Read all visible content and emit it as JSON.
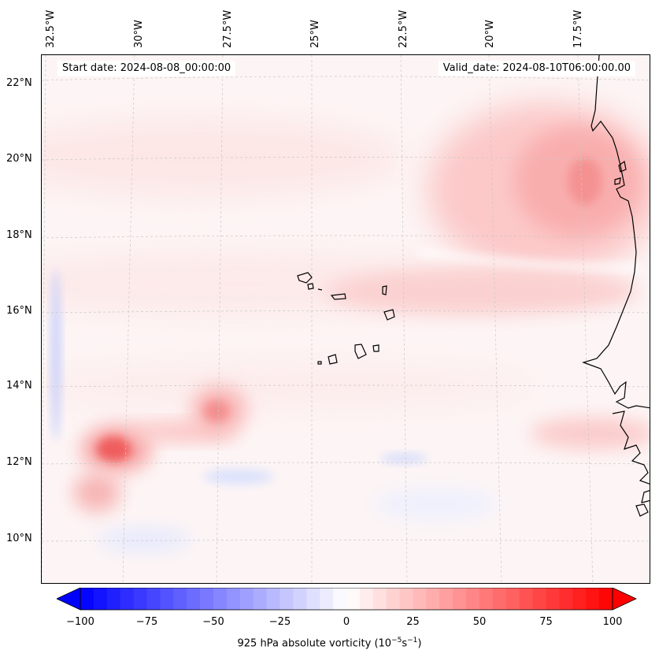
{
  "map": {
    "start_date": "Start date: 2024-08-08_00:00:00",
    "valid_date": "Valid_date: 2024-08-10T06:00:00.00",
    "longitude_labels": [
      "32.5°W",
      "30°W",
      "27.5°W",
      "25°W",
      "22.5°W",
      "20°W",
      "17.5°W"
    ],
    "latitude_labels": [
      "22°N",
      "20°N",
      "18°N",
      "16°N",
      "14°N",
      "12°N",
      "10°N"
    ],
    "gridlines": "dashed"
  },
  "colorbar": {
    "label_text": "925 hPa absolute vorticity (10",
    "label_exp1": "−5",
    "label_mid": "s",
    "label_exp2": "−1",
    "label_end": ")",
    "min": -100,
    "max": 100,
    "ticks": [
      "−100",
      "−75",
      "−50",
      "−25",
      "0",
      "25",
      "50",
      "75",
      "100"
    ],
    "extend": "both",
    "colormap": "bwr",
    "color_low": "#0000ff",
    "color_mid": "#ffffff",
    "color_high": "#ff0000"
  }
}
